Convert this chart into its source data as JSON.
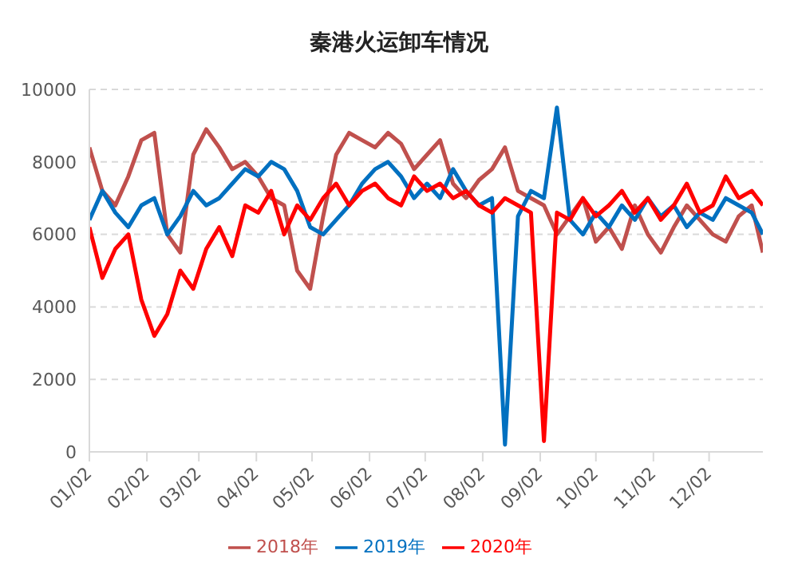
{
  "chart_data": {
    "type": "line",
    "title": "秦港火运卸车情况",
    "x": [
      "--01-02",
      "--01-09",
      "--01-16",
      "--01-23",
      "--01-30",
      "--02-06",
      "--02-13",
      "--02-20",
      "--02-27",
      "--03-06",
      "--03-13",
      "--03-20",
      "--03-27",
      "--04-03",
      "--04-10",
      "--04-17",
      "--04-24",
      "--05-01",
      "--05-08",
      "--05-15",
      "--05-22",
      "--05-29",
      "--06-05",
      "--06-12",
      "--06-19",
      "--06-26",
      "--07-03",
      "--07-10",
      "--07-17",
      "--07-24",
      "--07-31",
      "--08-07",
      "--08-14",
      "--08-21",
      "--08-28",
      "--09-04",
      "--09-11",
      "--09-18",
      "--09-25",
      "--10-02",
      "--10-09",
      "--10-16",
      "--10-23",
      "--10-30",
      "--11-06",
      "--11-13",
      "--11-20",
      "--11-27",
      "--12-04",
      "--12-11",
      "--12-18",
      "--12-25",
      "--12-31"
    ],
    "series": [
      {
        "name": "2018年",
        "color": "#c0504d",
        "values": [
          8400,
          7200,
          6800,
          7600,
          8600,
          8800,
          6000,
          5500,
          8200,
          8900,
          8400,
          7800,
          8000,
          7600,
          7000,
          6800,
          5000,
          4500,
          6500,
          8200,
          8800,
          8600,
          8400,
          8800,
          8500,
          7800,
          8200,
          8600,
          7400,
          7000,
          7500,
          7800,
          8400,
          7200,
          7000,
          6800,
          6000,
          6500,
          7000,
          5800,
          6200,
          5600,
          6800,
          6000,
          5500,
          6200,
          6800,
          6400,
          6000,
          5800,
          6500,
          6800,
          5500
        ]
      },
      {
        "name": "2019年",
        "color": "#0070c0",
        "values": [
          6400,
          7200,
          6600,
          6200,
          6800,
          7000,
          6000,
          6500,
          7200,
          6800,
          7000,
          7400,
          7800,
          7600,
          8000,
          7800,
          7200,
          6200,
          6000,
          6400,
          6800,
          7400,
          7800,
          8000,
          7600,
          7000,
          7400,
          7000,
          7800,
          7200,
          6800,
          7000,
          200,
          6500,
          7200,
          7000,
          9500,
          6400,
          6000,
          6600,
          6200,
          6800,
          6400,
          7000,
          6500,
          6800,
          6200,
          6600,
          6400,
          7000,
          6800,
          6600,
          6000
        ]
      },
      {
        "name": "2020年",
        "color": "#ff0000",
        "values": [
          6200,
          4800,
          5600,
          6000,
          4200,
          3200,
          3800,
          5000,
          4500,
          5600,
          6200,
          5400,
          6800,
          6600,
          7200,
          6000,
          6800,
          6400,
          7000,
          7400,
          6800,
          7200,
          7400,
          7000,
          6800,
          7600,
          7200,
          7400,
          7000,
          7200,
          6800,
          6600,
          7000,
          6800,
          6600,
          300,
          6600,
          6400,
          7000,
          6500,
          6800,
          7200,
          6600,
          7000,
          6400,
          6800,
          7400,
          6600,
          6800,
          7600,
          7000,
          7200,
          6800
        ]
      }
    ],
    "xlim": [
      "--01-02",
      "--12-31"
    ],
    "xticks": [
      {
        "value": "--01-02",
        "label": "01/02"
      },
      {
        "value": "--02-02",
        "label": "02/02"
      },
      {
        "value": "--03-02",
        "label": "03/02"
      },
      {
        "value": "--04-02",
        "label": "04/02"
      },
      {
        "value": "--05-02",
        "label": "05/02"
      },
      {
        "value": "--06-02",
        "label": "06/02"
      },
      {
        "value": "--07-02",
        "label": "07/02"
      },
      {
        "value": "--08-02",
        "label": "08/02"
      },
      {
        "value": "--09-02",
        "label": "09/02"
      },
      {
        "value": "--10-02",
        "label": "10/02"
      },
      {
        "value": "--11-02",
        "label": "11/02"
      },
      {
        "value": "--12-02",
        "label": "12/02"
      }
    ],
    "ylim": [
      0,
      10000
    ],
    "yticks": [
      0,
      2000,
      4000,
      6000,
      8000,
      10000
    ],
    "grid": "y",
    "legend": "bottom",
    "marker": "none",
    "line_style": "solid"
  }
}
